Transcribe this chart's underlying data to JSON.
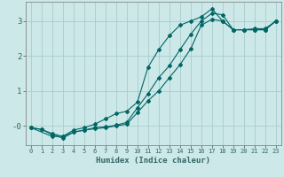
{
  "xlabel": "Humidex (Indice chaleur)",
  "ylabel": "",
  "background_color": "#cce8e8",
  "grid_color": "#aacccc",
  "line_color": "#006666",
  "xlim": [
    -0.5,
    23.5
  ],
  "ylim": [
    -0.55,
    3.55
  ],
  "ytick_positions": [
    0,
    1,
    2,
    3
  ],
  "ytick_labels": [
    "-0",
    "1",
    "2",
    "3"
  ],
  "xtick_positions": [
    0,
    1,
    2,
    3,
    4,
    5,
    6,
    7,
    8,
    9,
    10,
    11,
    12,
    13,
    14,
    15,
    16,
    17,
    18,
    19,
    20,
    21,
    22,
    23
  ],
  "series": [
    {
      "x": [
        0,
        1,
        2,
        3,
        4,
        5,
        6,
        7,
        8,
        9,
        10,
        11,
        12,
        13,
        14,
        15,
        16,
        17,
        18,
        19,
        20,
        21,
        22,
        23
      ],
      "y": [
        -0.05,
        -0.1,
        -0.22,
        -0.3,
        -0.18,
        -0.12,
        -0.08,
        -0.05,
        -0.0,
        0.05,
        0.38,
        0.72,
        1.0,
        1.38,
        1.75,
        2.2,
        2.88,
        3.05,
        3.0,
        2.75,
        2.75,
        2.75,
        2.75,
        3.0
      ]
    },
    {
      "x": [
        0,
        1,
        2,
        3,
        4,
        5,
        6,
        7,
        8,
        9,
        10,
        11,
        12,
        13,
        14,
        15,
        16,
        17,
        18,
        19,
        20,
        21,
        22,
        23
      ],
      "y": [
        -0.05,
        -0.1,
        -0.25,
        -0.35,
        -0.18,
        -0.12,
        -0.05,
        -0.03,
        0.02,
        0.1,
        0.52,
        0.92,
        1.38,
        1.72,
        2.18,
        2.62,
        3.0,
        3.22,
        3.18,
        2.75,
        2.75,
        2.75,
        2.75,
        3.0
      ]
    },
    {
      "x": [
        0,
        2,
        3,
        4,
        5,
        6,
        7,
        8,
        9,
        10,
        11,
        12,
        13,
        14,
        15,
        16,
        17,
        18,
        19,
        20,
        21,
        22,
        23
      ],
      "y": [
        -0.05,
        -0.3,
        -0.3,
        -0.12,
        -0.05,
        0.05,
        0.2,
        0.35,
        0.42,
        0.68,
        1.68,
        2.18,
        2.58,
        2.88,
        3.0,
        3.12,
        3.35,
        3.0,
        2.75,
        2.75,
        2.78,
        2.78,
        3.0
      ]
    }
  ]
}
